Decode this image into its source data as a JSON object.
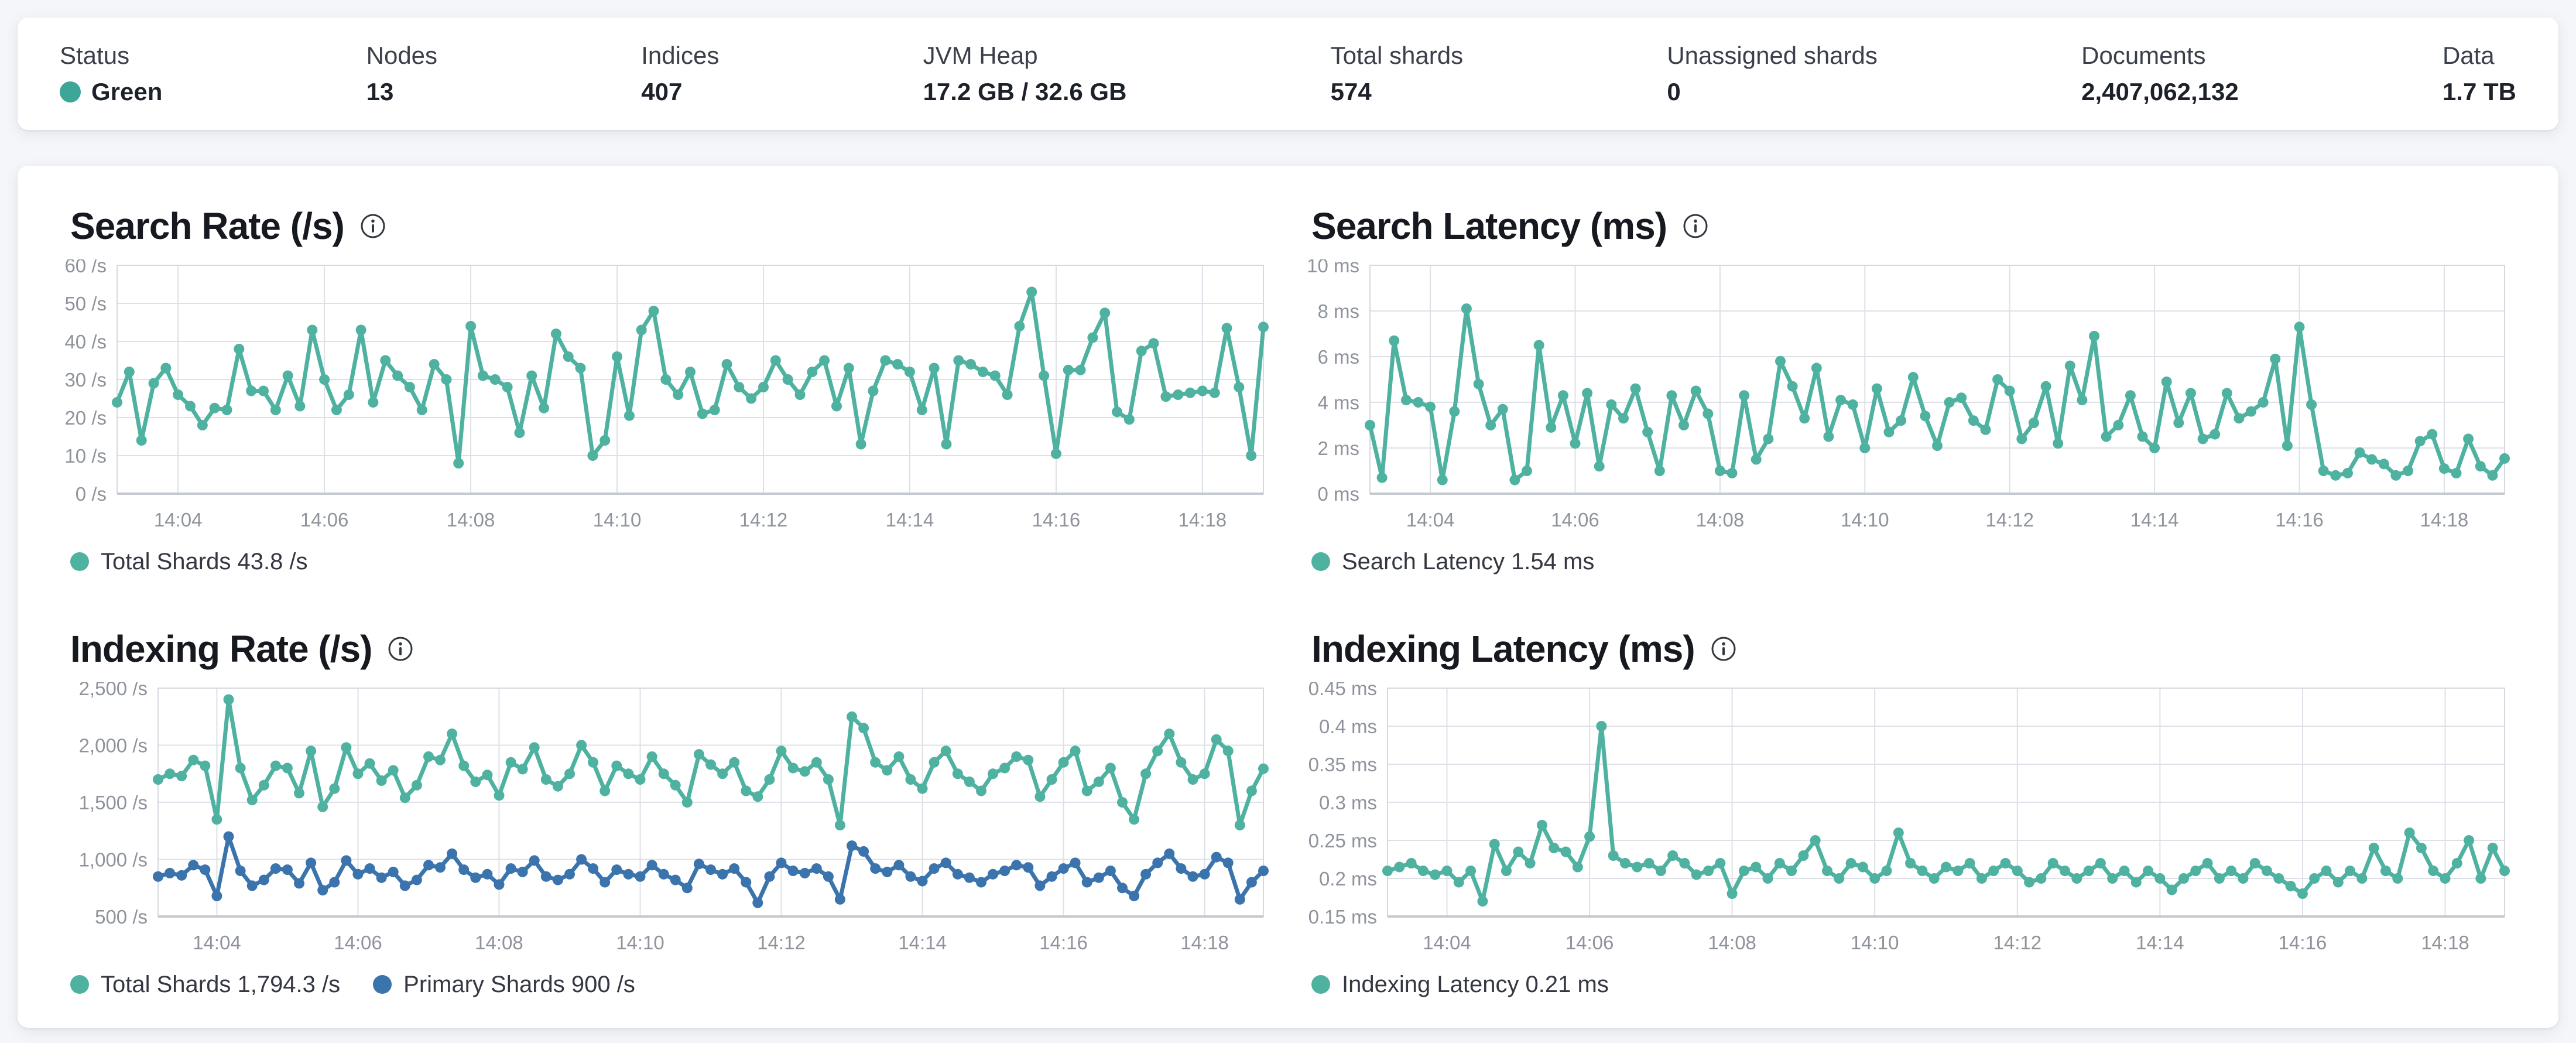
{
  "colors": {
    "teal": "#4fb2a1",
    "blue": "#3b73ac",
    "status_green_dot": "#3ca698",
    "axis_text": "#8e939c",
    "gridline": "#dde0e6",
    "plot_border": "#d6d9df",
    "axis_line": "#c5c9d0"
  },
  "stats": [
    {
      "label": "Status",
      "value": "Green"
    },
    {
      "label": "Nodes",
      "value": "13"
    },
    {
      "label": "Indices",
      "value": "407"
    },
    {
      "label": "JVM Heap",
      "value": "17.2 GB / 32.6 GB"
    },
    {
      "label": "Total shards",
      "value": "574"
    },
    {
      "label": "Unassigned shards",
      "value": "0"
    },
    {
      "label": "Documents",
      "value": "2,407,062,132"
    },
    {
      "label": "Data",
      "value": "1.7 TB"
    }
  ],
  "chart_data": [
    {
      "type": "line",
      "title": "Search Rate (/s)",
      "ylim": [
        0,
        60
      ],
      "x_range_minutes": [
        3.1667,
        18.8333
      ],
      "plot_left": 110,
      "y_ticks": [
        {
          "v": 0,
          "label": "0 /s"
        },
        {
          "v": 10,
          "label": "10 /s"
        },
        {
          "v": 20,
          "label": "20 /s"
        },
        {
          "v": 30,
          "label": "30 /s"
        },
        {
          "v": 40,
          "label": "40 /s"
        },
        {
          "v": 50,
          "label": "50 /s"
        },
        {
          "v": 60,
          "label": "60 /s"
        }
      ],
      "x_ticks": [
        {
          "minute": 4,
          "label": "14:04"
        },
        {
          "minute": 6,
          "label": "14:06"
        },
        {
          "minute": 8,
          "label": "14:08"
        },
        {
          "minute": 10,
          "label": "14:10"
        },
        {
          "minute": 12,
          "label": "14:12"
        },
        {
          "minute": 14,
          "label": "14:14"
        },
        {
          "minute": 16,
          "label": "14:16"
        },
        {
          "minute": 18,
          "label": "14:18"
        }
      ],
      "legend": [
        {
          "color_key": "teal",
          "label": "Total Shards 43.8 /s"
        }
      ],
      "series": [
        {
          "name": "Total Shards",
          "color_key": "teal",
          "current": "43.8 /s",
          "values": [
            24,
            32,
            14,
            29,
            33,
            26,
            23,
            18,
            22.5,
            22,
            38,
            27,
            27,
            22,
            31,
            23,
            43,
            30,
            22,
            26,
            43,
            24,
            35,
            31,
            28,
            22,
            34,
            30,
            8,
            44,
            31,
            30,
            28,
            16,
            31,
            22.5,
            42,
            36,
            33,
            10,
            14,
            36,
            20.5,
            43,
            48,
            30,
            26,
            32,
            21,
            22,
            34,
            28,
            25,
            28,
            35,
            30,
            26,
            32,
            35,
            23,
            33,
            13,
            27,
            35,
            34,
            32,
            22,
            33,
            13,
            35,
            34,
            32,
            31,
            26,
            44,
            53,
            31,
            10.5,
            32.5,
            32.5,
            41,
            47.5,
            21.5,
            19.5,
            37.5,
            39.5,
            25.5,
            26,
            26.5,
            27,
            26.5,
            43.5,
            28,
            10,
            43.8
          ]
        }
      ]
    },
    {
      "type": "line",
      "title": "Search Latency (ms)",
      "ylim": [
        0,
        10
      ],
      "x_range_minutes": [
        3.1667,
        18.8333
      ],
      "plot_left": 130,
      "y_ticks": [
        {
          "v": 0,
          "label": "0 ms"
        },
        {
          "v": 2,
          "label": "2 ms"
        },
        {
          "v": 4,
          "label": "4 ms"
        },
        {
          "v": 6,
          "label": "6 ms"
        },
        {
          "v": 8,
          "label": "8 ms"
        },
        {
          "v": 10,
          "label": "10 ms"
        }
      ],
      "x_ticks": [
        {
          "minute": 4,
          "label": "14:04"
        },
        {
          "minute": 6,
          "label": "14:06"
        },
        {
          "minute": 8,
          "label": "14:08"
        },
        {
          "minute": 10,
          "label": "14:10"
        },
        {
          "minute": 12,
          "label": "14:12"
        },
        {
          "minute": 14,
          "label": "14:14"
        },
        {
          "minute": 16,
          "label": "14:16"
        },
        {
          "minute": 18,
          "label": "14:18"
        }
      ],
      "legend": [
        {
          "color_key": "teal",
          "label": "Search Latency 1.54 ms"
        }
      ],
      "series": [
        {
          "name": "Search Latency",
          "color_key": "teal",
          "current": "1.54 ms",
          "values": [
            3,
            0.7,
            6.7,
            4.1,
            4,
            3.8,
            0.6,
            3.6,
            8.1,
            4.8,
            3,
            3.7,
            0.6,
            1,
            6.5,
            2.9,
            4.3,
            2.2,
            4.4,
            1.2,
            3.9,
            3.3,
            4.6,
            2.7,
            1,
            4.3,
            3,
            4.5,
            3.5,
            1,
            0.9,
            4.3,
            1.5,
            2.4,
            5.8,
            4.7,
            3.3,
            5.5,
            2.5,
            4.1,
            3.9,
            2,
            4.6,
            2.7,
            3.2,
            5.1,
            3.4,
            2.1,
            4,
            4.2,
            3.2,
            2.8,
            5,
            4.5,
            2.4,
            3.1,
            4.7,
            2.2,
            5.6,
            4.1,
            6.9,
            2.5,
            3,
            4.3,
            2.5,
            2,
            4.9,
            3.1,
            4.4,
            2.4,
            2.6,
            4.4,
            3.3,
            3.6,
            4,
            5.9,
            2.1,
            7.3,
            3.9,
            1,
            0.8,
            0.9,
            1.8,
            1.5,
            1.3,
            0.8,
            1,
            2.3,
            2.6,
            1.1,
            0.9,
            2.4,
            1.2,
            0.8,
            1.54
          ]
        }
      ]
    },
    {
      "type": "line",
      "title": "Indexing Rate (/s)",
      "ylim": [
        500,
        2500
      ],
      "x_range_minutes": [
        3.1667,
        18.8333
      ],
      "plot_left": 180,
      "y_ticks": [
        {
          "v": 500,
          "label": "500 /s"
        },
        {
          "v": 1000,
          "label": "1,000 /s"
        },
        {
          "v": 1500,
          "label": "1,500 /s"
        },
        {
          "v": 2000,
          "label": "2,000 /s"
        },
        {
          "v": 2500,
          "label": "2,500 /s"
        }
      ],
      "x_ticks": [
        {
          "minute": 4,
          "label": "14:04"
        },
        {
          "minute": 6,
          "label": "14:06"
        },
        {
          "minute": 8,
          "label": "14:08"
        },
        {
          "minute": 10,
          "label": "14:10"
        },
        {
          "minute": 12,
          "label": "14:12"
        },
        {
          "minute": 14,
          "label": "14:14"
        },
        {
          "minute": 16,
          "label": "14:16"
        },
        {
          "minute": 18,
          "label": "14:18"
        }
      ],
      "legend": [
        {
          "color_key": "teal",
          "label": "Total Shards 1,794.3 /s"
        },
        {
          "color_key": "blue",
          "label": "Primary Shards 900 /s"
        }
      ],
      "series": [
        {
          "name": "Total Shards",
          "color_key": "teal",
          "current": "1,794.3 /s",
          "values": [
            1700,
            1750,
            1730,
            1870,
            1820,
            1350,
            2400,
            1800,
            1520,
            1650,
            1820,
            1800,
            1580,
            1950,
            1460,
            1620,
            1980,
            1750,
            1840,
            1690,
            1780,
            1540,
            1650,
            1900,
            1870,
            2100,
            1820,
            1680,
            1740,
            1560,
            1850,
            1790,
            1980,
            1700,
            1640,
            1750,
            2000,
            1850,
            1600,
            1820,
            1750,
            1700,
            1900,
            1750,
            1650,
            1500,
            1920,
            1830,
            1750,
            1850,
            1600,
            1550,
            1700,
            1950,
            1800,
            1770,
            1850,
            1700,
            1300,
            2250,
            2150,
            1850,
            1780,
            1900,
            1700,
            1620,
            1850,
            1950,
            1750,
            1680,
            1600,
            1750,
            1800,
            1900,
            1870,
            1550,
            1700,
            1850,
            1950,
            1600,
            1680,
            1800,
            1500,
            1350,
            1750,
            1950,
            2100,
            1850,
            1700,
            1750,
            2050,
            1950,
            1300,
            1600,
            1794.3
          ]
        },
        {
          "name": "Primary Shards",
          "color_key": "blue",
          "current": "900 /s",
          "values": [
            850,
            880,
            860,
            950,
            910,
            680,
            1200,
            900,
            770,
            820,
            920,
            910,
            790,
            970,
            730,
            800,
            990,
            870,
            920,
            840,
            890,
            770,
            820,
            950,
            930,
            1050,
            910,
            840,
            870,
            780,
            920,
            890,
            990,
            850,
            820,
            870,
            1000,
            920,
            800,
            910,
            870,
            850,
            950,
            870,
            820,
            750,
            960,
            910,
            870,
            920,
            800,
            620,
            850,
            970,
            900,
            880,
            920,
            850,
            650,
            1120,
            1070,
            920,
            890,
            950,
            850,
            810,
            920,
            970,
            870,
            840,
            800,
            870,
            900,
            950,
            930,
            770,
            850,
            920,
            970,
            800,
            840,
            900,
            750,
            680,
            870,
            970,
            1050,
            920,
            850,
            870,
            1020,
            970,
            650,
            800,
            900
          ]
        }
      ]
    },
    {
      "type": "line",
      "title": "Indexing Latency (ms)",
      "ylim": [
        0.15,
        0.45
      ],
      "x_range_minutes": [
        3.1667,
        18.8333
      ],
      "plot_left": 160,
      "y_ticks": [
        {
          "v": 0.15,
          "label": "0.15 ms"
        },
        {
          "v": 0.2,
          "label": "0.2 ms"
        },
        {
          "v": 0.25,
          "label": "0.25 ms"
        },
        {
          "v": 0.3,
          "label": "0.3 ms"
        },
        {
          "v": 0.35,
          "label": "0.35 ms"
        },
        {
          "v": 0.4,
          "label": "0.4 ms"
        },
        {
          "v": 0.45,
          "label": "0.45 ms"
        }
      ],
      "x_ticks": [
        {
          "minute": 4,
          "label": "14:04"
        },
        {
          "minute": 6,
          "label": "14:06"
        },
        {
          "minute": 8,
          "label": "14:08"
        },
        {
          "minute": 10,
          "label": "14:10"
        },
        {
          "minute": 12,
          "label": "14:12"
        },
        {
          "minute": 14,
          "label": "14:14"
        },
        {
          "minute": 16,
          "label": "14:16"
        },
        {
          "minute": 18,
          "label": "14:18"
        }
      ],
      "legend": [
        {
          "color_key": "teal",
          "label": "Indexing Latency 0.21 ms"
        }
      ],
      "series": [
        {
          "name": "Indexing Latency",
          "color_key": "teal",
          "current": "0.21 ms",
          "values": [
            0.21,
            0.215,
            0.22,
            0.21,
            0.205,
            0.21,
            0.195,
            0.21,
            0.17,
            0.245,
            0.21,
            0.235,
            0.22,
            0.27,
            0.24,
            0.235,
            0.215,
            0.255,
            0.4,
            0.23,
            0.22,
            0.215,
            0.22,
            0.21,
            0.23,
            0.22,
            0.205,
            0.21,
            0.22,
            0.18,
            0.21,
            0.215,
            0.2,
            0.22,
            0.21,
            0.23,
            0.25,
            0.21,
            0.2,
            0.22,
            0.215,
            0.2,
            0.21,
            0.26,
            0.22,
            0.21,
            0.2,
            0.215,
            0.21,
            0.22,
            0.2,
            0.21,
            0.22,
            0.21,
            0.195,
            0.2,
            0.22,
            0.21,
            0.2,
            0.21,
            0.22,
            0.2,
            0.21,
            0.195,
            0.21,
            0.2,
            0.185,
            0.2,
            0.21,
            0.22,
            0.2,
            0.21,
            0.2,
            0.22,
            0.21,
            0.2,
            0.19,
            0.18,
            0.2,
            0.21,
            0.195,
            0.21,
            0.2,
            0.24,
            0.21,
            0.2,
            0.26,
            0.24,
            0.21,
            0.2,
            0.22,
            0.25,
            0.2,
            0.24,
            0.21
          ]
        }
      ]
    }
  ]
}
